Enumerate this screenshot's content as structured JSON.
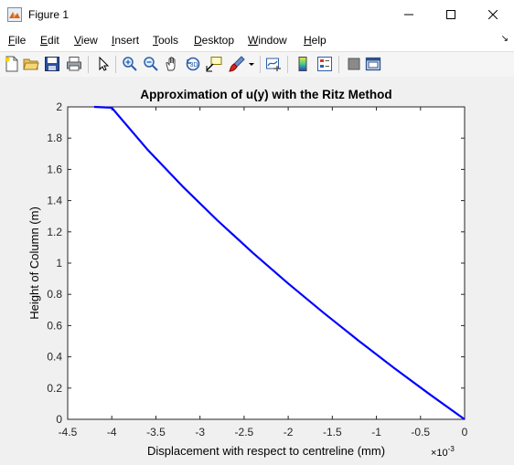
{
  "window": {
    "title": "Figure 1",
    "icon": "matlab-figure-icon"
  },
  "menu": {
    "items": [
      {
        "label": "File",
        "key": "F",
        "rest": "ile"
      },
      {
        "label": "Edit",
        "key": "E",
        "rest": "dit"
      },
      {
        "label": "View",
        "key": "V",
        "rest": "iew"
      },
      {
        "label": "Insert",
        "key": "I",
        "rest": "nsert"
      },
      {
        "label": "Tools",
        "key": "T",
        "rest": "ools"
      },
      {
        "label": "Desktop",
        "key": "D",
        "rest": "esktop"
      },
      {
        "label": "Window",
        "key": "W",
        "rest": "indow"
      },
      {
        "label": "Help",
        "key": "H",
        "rest": "elp"
      }
    ]
  },
  "toolbar": {
    "icons": [
      "new-figure-icon",
      "open-file-icon",
      "save-icon",
      "print-icon",
      "select-arrow-icon",
      "zoom-in-icon",
      "zoom-out-icon",
      "pan-hand-icon",
      "rotate-3d-icon",
      "data-cursor-icon",
      "brush-icon",
      "brush-dropdown-icon",
      "link-plot-icon",
      "colorbar-icon",
      "legend-icon",
      "hide-plot-tools-icon",
      "show-plot-tools-icon"
    ]
  },
  "chart_data": {
    "type": "line",
    "title": "Approximation of u(y) with the Ritz Method",
    "xlabel": "Displacement with respect to centreline (mm)",
    "ylabel": "Height of Column (m)",
    "x_exponent": "×10",
    "x_exponent_power": "-3",
    "xlim": [
      -4.5,
      0
    ],
    "ylim": [
      0,
      2
    ],
    "xticks": [
      "-4.5",
      "-4",
      "-3.5",
      "-3",
      "-2.5",
      "-2",
      "-1.5",
      "-1",
      "-0.5",
      "0"
    ],
    "yticks": [
      "0",
      "0.2",
      "0.4",
      "0.6",
      "0.8",
      "1",
      "1.2",
      "1.4",
      "1.6",
      "1.8",
      "2"
    ],
    "series": [
      {
        "color": "#0000ff",
        "x": [
          0,
          -0.4,
          -0.8,
          -1.2,
          -1.6,
          -2.0,
          -2.4,
          -2.8,
          -3.2,
          -3.6,
          -4.0,
          -4.2
        ],
        "y": [
          0,
          0.1618,
          0.3292,
          0.5025,
          0.6824,
          0.8696,
          1.0656,
          1.2722,
          1.4922,
          1.73,
          1.9946,
          2.0
        ]
      }
    ]
  }
}
